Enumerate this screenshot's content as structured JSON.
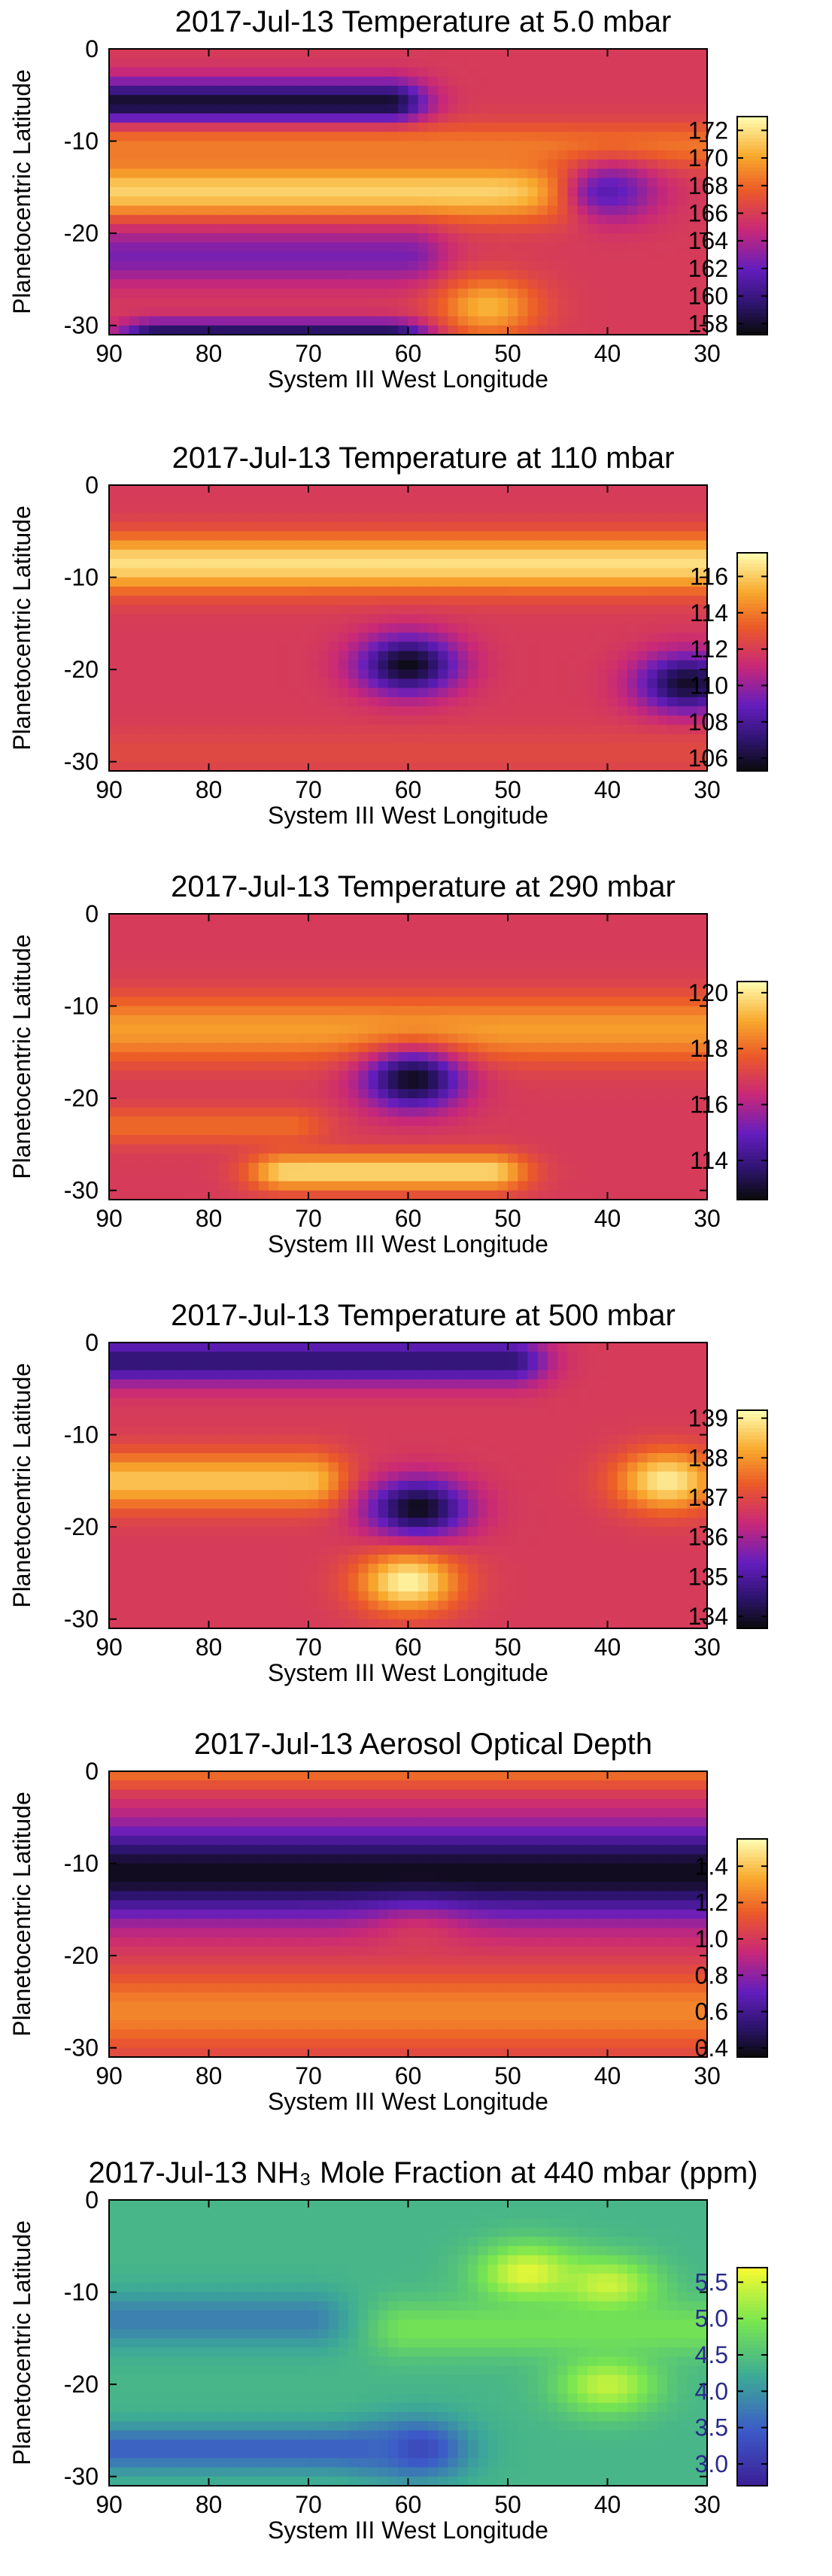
{
  "chart_data": [
    {
      "type": "heatmap",
      "title": "2017-Jul-13 Temperature at 5.0 mbar",
      "xlabel": "System III West Longitude",
      "ylabel": "Planetocentric Latitude",
      "xlim": [
        90,
        30
      ],
      "ylim": [
        -31,
        0
      ],
      "x_ticks": [
        "90",
        "80",
        "70",
        "60",
        "50",
        "40",
        "30"
      ],
      "y_ticks": [
        "0",
        "-10",
        "-20",
        "-30"
      ],
      "colorbar": {
        "colormap": "thermal",
        "range": [
          157.2,
          173.0
        ],
        "ticks": [
          "172",
          "170",
          "168",
          "166",
          "164",
          "162",
          "160",
          "158"
        ]
      },
      "features": [
        {
          "kind": "band",
          "lat": -6,
          "width": 2.5,
          "value": 157.6,
          "lon_range": [
            90,
            62
          ]
        },
        {
          "kind": "band",
          "lat": -10.5,
          "width": 2.5,
          "value": 168.5,
          "lon_range": [
            90,
            30
          ]
        },
        {
          "kind": "band",
          "lat": -15.5,
          "width": 3.0,
          "value": 171.5,
          "lon_range": [
            90,
            45
          ]
        },
        {
          "kind": "blob",
          "lon": 40,
          "lat": -15.5,
          "value": 161.5
        },
        {
          "kind": "band",
          "lat": -22.5,
          "width": 3.0,
          "value": 162.5,
          "lon_range": [
            90,
            60
          ]
        },
        {
          "kind": "blob",
          "lon": 52,
          "lat": -28,
          "value": 170.5
        },
        {
          "kind": "band",
          "lat": -31,
          "width": 1.5,
          "value": 158.5,
          "lon_range": [
            85,
            62
          ]
        }
      ]
    },
    {
      "type": "heatmap",
      "title": "2017-Jul-13 Temperature at 110 mbar",
      "xlabel": "System III West Longitude",
      "ylabel": "Planetocentric Latitude",
      "xlim": [
        90,
        30
      ],
      "ylim": [
        -31,
        0
      ],
      "x_ticks": [
        "90",
        "80",
        "70",
        "60",
        "50",
        "40",
        "30"
      ],
      "y_ticks": [
        "0",
        "-10",
        "-20",
        "-30"
      ],
      "colorbar": {
        "colormap": "thermal",
        "range": [
          105.3,
          117.3
        ],
        "ticks": [
          "116",
          "114",
          "112",
          "110",
          "108",
          "106"
        ]
      },
      "features": [
        {
          "kind": "band",
          "lat": -8.5,
          "width": 3.0,
          "value": 116.5,
          "lon_range": [
            90,
            30
          ]
        },
        {
          "kind": "blob",
          "lon": 60,
          "lat": -19.5,
          "value": 105.5
        },
        {
          "kind": "blob",
          "lon": 32,
          "lat": -21.5,
          "value": 105.8
        },
        {
          "kind": "band",
          "lat": -29,
          "width": 2.5,
          "value": 112.5,
          "lon_range": [
            90,
            30
          ]
        }
      ]
    },
    {
      "type": "heatmap",
      "title": "2017-Jul-13 Temperature at 290 mbar",
      "xlabel": "System III West Longitude",
      "ylabel": "Planetocentric Latitude",
      "xlim": [
        90,
        30
      ],
      "ylim": [
        -31,
        0
      ],
      "x_ticks": [
        "90",
        "80",
        "70",
        "60",
        "50",
        "40",
        "30"
      ],
      "y_ticks": [
        "0",
        "-10",
        "-20",
        "-30"
      ],
      "colorbar": {
        "colormap": "thermal",
        "range": [
          112.6,
          120.4
        ],
        "ticks": [
          "120",
          "118",
          "116",
          "114"
        ]
      },
      "features": [
        {
          "kind": "band",
          "lat": -12.5,
          "width": 3.5,
          "value": 118.8,
          "lon_range": [
            90,
            30
          ]
        },
        {
          "kind": "blob",
          "lon": 59.5,
          "lat": -18,
          "value": 112.8
        },
        {
          "kind": "band",
          "lat": -28,
          "width": 2.0,
          "value": 119.8,
          "lon_range": [
            72,
            52
          ]
        },
        {
          "kind": "band",
          "lat": -23,
          "width": 2.0,
          "value": 118.0,
          "lon_range": [
            90,
            72
          ]
        }
      ]
    },
    {
      "type": "heatmap",
      "title": "2017-Jul-13 Temperature at 500 mbar",
      "xlabel": "System III West Longitude",
      "ylabel": "Planetocentric Latitude",
      "xlim": [
        90,
        30
      ],
      "ylim": [
        -31,
        0
      ],
      "x_ticks": [
        "90",
        "80",
        "70",
        "60",
        "50",
        "40",
        "30"
      ],
      "y_ticks": [
        "0",
        "-10",
        "-20",
        "-30"
      ],
      "colorbar": {
        "colormap": "thermal",
        "range": [
          133.7,
          139.2
        ],
        "ticks": [
          "139",
          "138",
          "137",
          "136",
          "135",
          "134"
        ]
      },
      "features": [
        {
          "kind": "band",
          "lat": -15,
          "width": 3.0,
          "value": 138.5,
          "lon_range": [
            90,
            70
          ]
        },
        {
          "kind": "blob",
          "lon": 34,
          "lat": -15,
          "value": 139.0
        },
        {
          "kind": "blob",
          "lon": 59,
          "lat": -18,
          "value": 133.8
        },
        {
          "kind": "blob",
          "lon": 60,
          "lat": -26,
          "value": 139.1
        },
        {
          "kind": "band",
          "lat": -2,
          "width": 2.5,
          "value": 134.5,
          "lon_range": [
            90,
            50
          ]
        }
      ]
    },
    {
      "type": "heatmap",
      "title": "2017-Jul-13 Aerosol Optical Depth",
      "xlabel": "System III West Longitude",
      "ylabel": "Planetocentric Latitude",
      "xlim": [
        90,
        30
      ],
      "ylim": [
        -31,
        0
      ],
      "x_ticks": [
        "90",
        "80",
        "70",
        "60",
        "50",
        "40",
        "30"
      ],
      "y_ticks": [
        "0",
        "-10",
        "-20",
        "-30"
      ],
      "colorbar": {
        "colormap": "thermal",
        "range": [
          0.35,
          1.55
        ],
        "ticks": [
          "1.4",
          "1.2",
          "1.0",
          "0.8",
          "0.6",
          "0.4"
        ]
      },
      "features": [
        {
          "kind": "band",
          "lat": 0,
          "width": 2.0,
          "value": 1.2,
          "lon_range": [
            90,
            30
          ]
        },
        {
          "kind": "band",
          "lat": -11,
          "width": 5.0,
          "value": 0.38,
          "lon_range": [
            90,
            30
          ]
        },
        {
          "kind": "blob",
          "lon": 59,
          "lat": -18.5,
          "value": 1.0
        },
        {
          "kind": "band",
          "lat": -26,
          "width": 4.0,
          "value": 1.25,
          "lon_range": [
            90,
            30
          ]
        }
      ]
    },
    {
      "type": "heatmap",
      "title": "2017-Jul-13 NH₃ Mole Fraction at 440 mbar (ppm)",
      "xlabel": "System III West Longitude",
      "ylabel": "Planetocentric Latitude",
      "xlim": [
        90,
        30
      ],
      "ylim": [
        -31,
        0
      ],
      "x_ticks": [
        "90",
        "80",
        "70",
        "60",
        "50",
        "40",
        "30"
      ],
      "y_ticks": [
        "0",
        "-10",
        "-20",
        "-30"
      ],
      "colorbar": {
        "colormap": "blue-green-yellow",
        "range": [
          2.7,
          5.7
        ],
        "ticks": [
          "5.5",
          "5.0",
          "4.5",
          "4.0",
          "3.5",
          "3.0"
        ]
      },
      "features": [
        {
          "kind": "blob",
          "lon": 48,
          "lat": -8,
          "value": 5.6
        },
        {
          "kind": "blob",
          "lon": 40,
          "lat": -9.5,
          "value": 5.5
        },
        {
          "kind": "blob",
          "lon": 40,
          "lat": -20,
          "value": 5.4
        },
        {
          "kind": "band",
          "lat": -14,
          "width": 3.0,
          "value": 4.9,
          "lon_range": [
            60,
            30
          ]
        },
        {
          "kind": "band",
          "lat": -13,
          "width": 3.0,
          "value": 3.8,
          "lon_range": [
            90,
            70
          ]
        },
        {
          "kind": "blob",
          "lon": 59,
          "lat": -27,
          "value": 3.2
        },
        {
          "kind": "band",
          "lat": -27,
          "width": 2.5,
          "value": 3.5,
          "lon_range": [
            90,
            65
          ]
        }
      ]
    }
  ]
}
